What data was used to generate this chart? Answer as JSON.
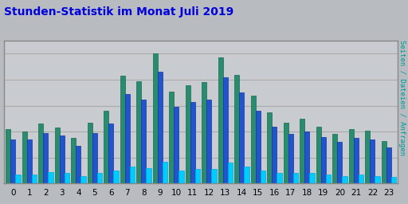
{
  "title": "Stunden-Statistik im Monat Juli 2019",
  "title_color": "#0000dd",
  "background_color": "#b8bcc0",
  "plot_bg_color": "#c8ccd0",
  "ylabel_right": "Seiten / Dateien / Anfragen",
  "hours": [
    0,
    1,
    2,
    3,
    4,
    5,
    6,
    7,
    8,
    9,
    10,
    11,
    12,
    13,
    14,
    15,
    16,
    17,
    18,
    19,
    20,
    21,
    22,
    23
  ],
  "seiten": [
    42,
    40,
    46,
    43,
    35,
    47,
    56,
    83,
    79,
    100,
    71,
    76,
    78,
    97,
    84,
    68,
    55,
    47,
    50,
    44,
    38,
    42,
    41,
    33
  ],
  "dateien": [
    34,
    34,
    39,
    37,
    29,
    39,
    46,
    69,
    65,
    86,
    59,
    63,
    65,
    82,
    70,
    56,
    44,
    38,
    40,
    36,
    32,
    35,
    34,
    28
  ],
  "anfragen": [
    7,
    7,
    9,
    8,
    6,
    8,
    10,
    13,
    12,
    17,
    10,
    11,
    11,
    16,
    13,
    10,
    8,
    8,
    8,
    7,
    6,
    7,
    6,
    5
  ],
  "color_seiten": "#2a8c6e",
  "color_dateien": "#2255cc",
  "color_anfragen": "#00ccff",
  "edge_seiten": "#1a6a50",
  "edge_dateien": "#1133aa",
  "edge_anfragen": "#00aadd",
  "bar_width": 0.3,
  "grid_color": "#aaaaaa",
  "border_color": "#888888"
}
